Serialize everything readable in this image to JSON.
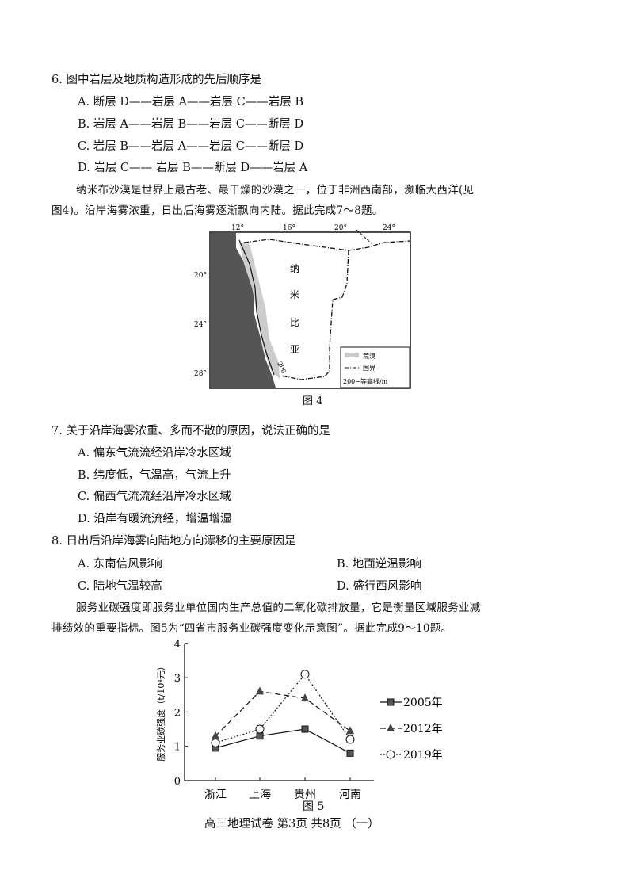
{
  "q6": {
    "stem": "6. 图中岩层及地质构造形成的先后顺序是",
    "options": [
      "A.  断层 D——岩层 A——岩层 C——岩层 B",
      "B.  岩层 A——岩层 B——岩层 C——断层 D",
      "C.  岩层 B——岩层 A——岩层 C——断层 D",
      "D.  岩层 C—— 岩层 B——断层 D——岩层 A"
    ]
  },
  "intro1": [
    "纳米布沙漠是世界上最古老、最干燥的沙漠之一，位于非洲西南部，濒临大西洋(见",
    "图4)。沿岸海雾浓重，日出后海雾逐渐飘向内陆。据此完成7～8题。"
  ],
  "map": {
    "lon_labels": [
      "12°",
      "16°",
      "20°",
      "24°"
    ],
    "lat_labels": [
      "20°",
      "24°",
      "28°"
    ],
    "country": [
      "纳",
      "米",
      "比",
      "亚"
    ],
    "contour_label": "200",
    "legend": [
      "荒漠",
      "国界",
      "200~等高线/m"
    ],
    "caption": "图 4"
  },
  "q7": {
    "stem": "7.  关于沿岸海雾浓重、多而不散的原因，说法正确的是",
    "options": [
      "A.  偏东气流流经沿岸冷水区域",
      "B.  纬度低，气温高，气流上升",
      "C.  偏西气流流经沿岸冷水区域",
      "D.  沿岸有暖流流经，增温增湿"
    ]
  },
  "q8": {
    "stem": "8.  日出后沿岸海雾向陆地方向漂移的主要原因是",
    "options": [
      "A.  东南信风影响",
      "B. 地面逆温影响",
      "C.  陆地气温较高",
      "D. 盛行西风影响"
    ]
  },
  "intro2": [
    "服务业碳强度即服务业单位国内生产总值的二氧化碳排放量，它是衡量区域服务业减",
    "排绩效的重要指标。图5为“四省市服务业碳强度变化示意图”。据此完成9～10题。"
  ],
  "chart_data": {
    "type": "line",
    "categories": [
      "浙江",
      "上海",
      "贵州",
      "河南"
    ],
    "ylabel": "服务业碳强度（t/10⁴元）",
    "ylim": [
      0,
      4
    ],
    "yticks": [
      "0",
      "1",
      "2",
      "3",
      "4"
    ],
    "legend": "right",
    "series": [
      {
        "name": "2005年",
        "values": [
          0.95,
          1.3,
          1.5,
          0.8
        ],
        "marker": "square",
        "line": "solid"
      },
      {
        "name": "2012年",
        "values": [
          1.3,
          2.6,
          2.4,
          1.45
        ],
        "marker": "triangle",
        "line": "dashed"
      },
      {
        "name": "2019年",
        "values": [
          1.1,
          1.5,
          3.1,
          1.2
        ],
        "marker": "circle",
        "line": "dotted"
      }
    ],
    "caption": "图 5"
  },
  "footer": "高三地理试卷  第3页    共8页  （一）"
}
